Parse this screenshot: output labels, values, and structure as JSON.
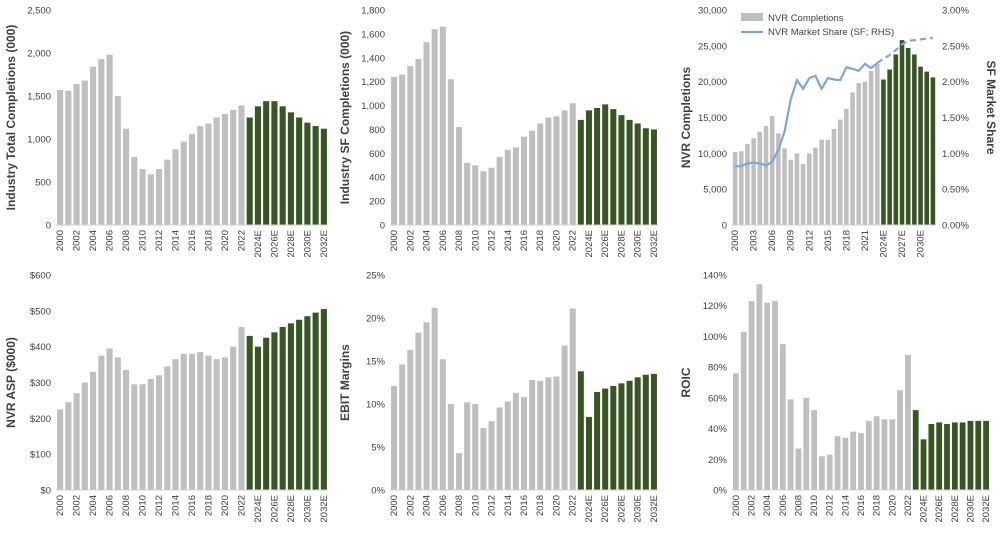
{
  "colors": {
    "hist": "#BFBFBF",
    "forecast": "#375623",
    "axis": "#D0D0D0",
    "text": "#404040",
    "line": "#7FA6D9"
  },
  "chart_data": [
    {
      "type": "bar",
      "ylabel": "Industry Total Completions (000)",
      "ylim": [
        0,
        2500
      ],
      "yticks": [
        "0",
        "500",
        "1,000",
        "1,500",
        "2,000",
        "2,500"
      ],
      "ytick_values": [
        0,
        500,
        1000,
        1500,
        2000,
        2500
      ],
      "categories": [
        "2000",
        "2001",
        "2002",
        "2003",
        "2004",
        "2005",
        "2006",
        "2007",
        "2008",
        "2009",
        "2010",
        "2011",
        "2012",
        "2013",
        "2014",
        "2015",
        "2016",
        "2017",
        "2018",
        "2019",
        "2020",
        "2021",
        "2022",
        "2023",
        "2024E",
        "2025E",
        "2026E",
        "2027E",
        "2028E",
        "2029E",
        "2030E",
        "2031E",
        "2032E"
      ],
      "xtick_labels": [
        "2000",
        "",
        "2002",
        "",
        "2004",
        "",
        "2006",
        "",
        "2008",
        "",
        "2010",
        "",
        "2012",
        "",
        "2014",
        "",
        "2016",
        "",
        "2018",
        "",
        "2020",
        "",
        "2022",
        "",
        "2024E",
        "",
        "2026E",
        "",
        "2028E",
        "",
        "2030E",
        "",
        "2032E"
      ],
      "values": [
        1570,
        1560,
        1640,
        1680,
        1840,
        1930,
        1980,
        1500,
        1120,
        790,
        650,
        590,
        650,
        760,
        880,
        970,
        1060,
        1150,
        1180,
        1250,
        1290,
        1340,
        1390,
        1250,
        1380,
        1440,
        1440,
        1380,
        1310,
        1250,
        1190,
        1150,
        1120
      ],
      "forecast_start": 23
    },
    {
      "type": "bar",
      "ylabel": "Industry SF Completions (000)",
      "ylim": [
        0,
        1800
      ],
      "yticks": [
        "0",
        "200",
        "400",
        "600",
        "800",
        "1,000",
        "1,200",
        "1,400",
        "1,600",
        "1,800"
      ],
      "ytick_values": [
        0,
        200,
        400,
        600,
        800,
        1000,
        1200,
        1400,
        1600,
        1800
      ],
      "categories": [
        "2000",
        "2001",
        "2002",
        "2003",
        "2004",
        "2005",
        "2006",
        "2007",
        "2008",
        "2009",
        "2010",
        "2011",
        "2012",
        "2013",
        "2014",
        "2015",
        "2016",
        "2017",
        "2018",
        "2019",
        "2020",
        "2021",
        "2022",
        "2023",
        "2024E",
        "2025E",
        "2026E",
        "2027E",
        "2028E",
        "2029E",
        "2030E",
        "2031E",
        "2032E"
      ],
      "xtick_labels": [
        "2000",
        "",
        "2002",
        "",
        "2004",
        "",
        "2006",
        "",
        "2008",
        "",
        "2010",
        "",
        "2012",
        "",
        "2014",
        "",
        "2016",
        "",
        "2018",
        "",
        "2020",
        "",
        "2022",
        "",
        "2024E",
        "",
        "2026E",
        "",
        "2028E",
        "",
        "2030E",
        "",
        "2032E"
      ],
      "values": [
        1240,
        1260,
        1330,
        1390,
        1530,
        1640,
        1660,
        1220,
        820,
        520,
        500,
        450,
        480,
        570,
        630,
        650,
        740,
        790,
        850,
        900,
        910,
        960,
        1020,
        880,
        960,
        980,
        1010,
        970,
        920,
        880,
        850,
        810,
        800
      ],
      "forecast_start": 23
    },
    {
      "type": "bar",
      "ylabel": "NVR Completions",
      "y2label": "SF Market Share",
      "ylim": [
        0,
        30000
      ],
      "y2lim": [
        0,
        0.03
      ],
      "yticks": [
        "0",
        "5,000",
        "10,000",
        "15,000",
        "20,000",
        "25,000",
        "30,000"
      ],
      "ytick_values": [
        0,
        5000,
        10000,
        15000,
        20000,
        25000,
        30000
      ],
      "y2ticks": [
        "0.00%",
        "0.50%",
        "1.00%",
        "1.50%",
        "2.00%",
        "2.50%",
        "3.00%"
      ],
      "y2tick_values": [
        0,
        0.005,
        0.01,
        0.015,
        0.02,
        0.025,
        0.03
      ],
      "categories": [
        "2000",
        "2001",
        "2002",
        "2003",
        "2004",
        "2005",
        "2006",
        "2007",
        "2008",
        "2009",
        "2010",
        "2011",
        "2012",
        "2013",
        "2014",
        "2015",
        "2016",
        "2017",
        "2018",
        "2019",
        "2020",
        "2021",
        "2022",
        "2023",
        "2024E",
        "2025E",
        "2026E",
        "2027E",
        "2028E",
        "2029E",
        "2030E",
        "2031E",
        "2032E"
      ],
      "xtick_labels": [
        "2000",
        "",
        "",
        "2003",
        "",
        "",
        "2006",
        "",
        "",
        "2009",
        "",
        "",
        "2012",
        "",
        "",
        "2015",
        "",
        "",
        "2018",
        "",
        "",
        "2021",
        "",
        "",
        "2024E",
        "",
        "",
        "2027E",
        "",
        "",
        "2030E",
        "",
        ""
      ],
      "values": [
        10200,
        10300,
        11300,
        12100,
        13000,
        13800,
        15200,
        12800,
        10700,
        9100,
        10000,
        8500,
        10000,
        10800,
        11900,
        11900,
        13400,
        14700,
        16200,
        18500,
        19800,
        20000,
        21500,
        22500,
        20300,
        21700,
        23800,
        25800,
        24700,
        23800,
        22100,
        21400,
        20600
      ],
      "forecast_start": 24,
      "legend": [
        "NVR Completions",
        "NVR Market Share (SF; RHS)"
      ],
      "line_values": [
        0.0082,
        0.0082,
        0.0086,
        0.0087,
        0.0086,
        0.0083,
        0.0088,
        0.0105,
        0.013,
        0.0175,
        0.0202,
        0.019,
        0.0205,
        0.0208,
        0.019,
        0.0205,
        0.0203,
        0.0202,
        0.022,
        0.0218,
        0.0215,
        0.0225,
        0.0219,
        0.0226,
        0.0232,
        0.0237,
        0.0244,
        0.0252,
        0.0257,
        0.0258,
        0.0259,
        0.026,
        0.0261
      ],
      "line_forecast_start": 23
    },
    {
      "type": "bar",
      "ylabel": "NVR ASP ($000)",
      "ylim": [
        0,
        600
      ],
      "yticks": [
        "$0",
        "$100",
        "$200",
        "$300",
        "$400",
        "$500",
        "$600"
      ],
      "ytick_values": [
        0,
        100,
        200,
        300,
        400,
        500,
        600
      ],
      "categories": [
        "2000",
        "2001",
        "2002",
        "2003",
        "2004",
        "2005",
        "2006",
        "2007",
        "2008",
        "2009",
        "2010",
        "2011",
        "2012",
        "2013",
        "2014",
        "2015",
        "2016",
        "2017",
        "2018",
        "2019",
        "2020",
        "2021",
        "2022",
        "2023",
        "2024E",
        "2025E",
        "2026E",
        "2027E",
        "2028E",
        "2029E",
        "2030E",
        "2031E",
        "2032E"
      ],
      "xtick_labels": [
        "2000",
        "",
        "2002",
        "",
        "2004",
        "",
        "2006",
        "",
        "2008",
        "",
        "2010",
        "",
        "2012",
        "",
        "2014",
        "",
        "2016",
        "",
        "2018",
        "",
        "2020",
        "",
        "2022",
        "",
        "2024E",
        "",
        "2026E",
        "",
        "2028E",
        "",
        "2030E",
        "",
        "2032E"
      ],
      "values": [
        225,
        245,
        270,
        300,
        330,
        375,
        395,
        370,
        335,
        295,
        295,
        310,
        320,
        345,
        365,
        380,
        380,
        385,
        375,
        365,
        370,
        400,
        455,
        430,
        400,
        425,
        440,
        455,
        465,
        475,
        485,
        495,
        505
      ],
      "forecast_start": 23
    },
    {
      "type": "bar",
      "ylabel": "EBIT Margins",
      "ylim": [
        0,
        0.25
      ],
      "yticks": [
        "0%",
        "5%",
        "10%",
        "15%",
        "20%",
        "25%"
      ],
      "ytick_values": [
        0,
        0.05,
        0.1,
        0.15,
        0.2,
        0.25
      ],
      "categories": [
        "2000",
        "2001",
        "2002",
        "2003",
        "2004",
        "2005",
        "2006",
        "2007",
        "2008",
        "2009",
        "2010",
        "2011",
        "2012",
        "2013",
        "2014",
        "2015",
        "2016",
        "2017",
        "2018",
        "2019",
        "2020",
        "2021",
        "2022",
        "2023",
        "2024E",
        "2025E",
        "2026E",
        "2027E",
        "2028E",
        "2029E",
        "2030E",
        "2031E",
        "2032E"
      ],
      "xtick_labels": [
        "2000",
        "",
        "2002",
        "",
        "2004",
        "",
        "2006",
        "",
        "2008",
        "",
        "2010",
        "",
        "2012",
        "",
        "2014",
        "",
        "2016",
        "",
        "2018",
        "",
        "2020",
        "",
        "2022",
        "",
        "2024E",
        "",
        "2026E",
        "",
        "2028E",
        "",
        "2030E",
        "",
        "2032E"
      ],
      "values": [
        0.121,
        0.146,
        0.163,
        0.183,
        0.195,
        0.212,
        0.152,
        0.1,
        0.043,
        0.102,
        0.1,
        0.072,
        0.08,
        0.096,
        0.103,
        0.113,
        0.108,
        0.128,
        0.127,
        0.131,
        0.132,
        0.168,
        0.211,
        0.138,
        0.085,
        0.114,
        0.118,
        0.121,
        0.124,
        0.127,
        0.131,
        0.134,
        0.135
      ],
      "forecast_start": 23
    },
    {
      "type": "bar",
      "ylabel": "ROIC",
      "ylim": [
        0,
        1.4
      ],
      "yticks": [
        "0%",
        "20%",
        "40%",
        "60%",
        "80%",
        "100%",
        "120%",
        "140%"
      ],
      "ytick_values": [
        0,
        0.2,
        0.4,
        0.6,
        0.8,
        1.0,
        1.2,
        1.4
      ],
      "categories": [
        "2000",
        "2001",
        "2002",
        "2003",
        "2004",
        "2005",
        "2006",
        "2007",
        "2008",
        "2009",
        "2010",
        "2011",
        "2012",
        "2013",
        "2014",
        "2015",
        "2016",
        "2017",
        "2018",
        "2019",
        "2020",
        "2021",
        "2022",
        "2023",
        "2024E",
        "2025E",
        "2026E",
        "2027E",
        "2028E",
        "2029E",
        "2030E",
        "2031E",
        "2032E"
      ],
      "xtick_labels": [
        "2000",
        "",
        "2002",
        "",
        "2004",
        "",
        "2006",
        "",
        "2008",
        "",
        "2010",
        "",
        "2012",
        "",
        "2014",
        "",
        "2016",
        "",
        "2018",
        "",
        "2020",
        "",
        "2022",
        "",
        "2024E",
        "",
        "2026E",
        "",
        "2028E",
        "",
        "2030E",
        "",
        "2032E"
      ],
      "values": [
        0.76,
        1.03,
        1.23,
        1.34,
        1.22,
        1.23,
        0.95,
        0.59,
        0.27,
        0.6,
        0.52,
        0.22,
        0.23,
        0.35,
        0.34,
        0.38,
        0.37,
        0.45,
        0.48,
        0.46,
        0.46,
        0.65,
        0.88,
        0.52,
        0.33,
        0.43,
        0.44,
        0.43,
        0.44,
        0.44,
        0.45,
        0.45,
        0.45
      ],
      "forecast_start": 23
    }
  ]
}
